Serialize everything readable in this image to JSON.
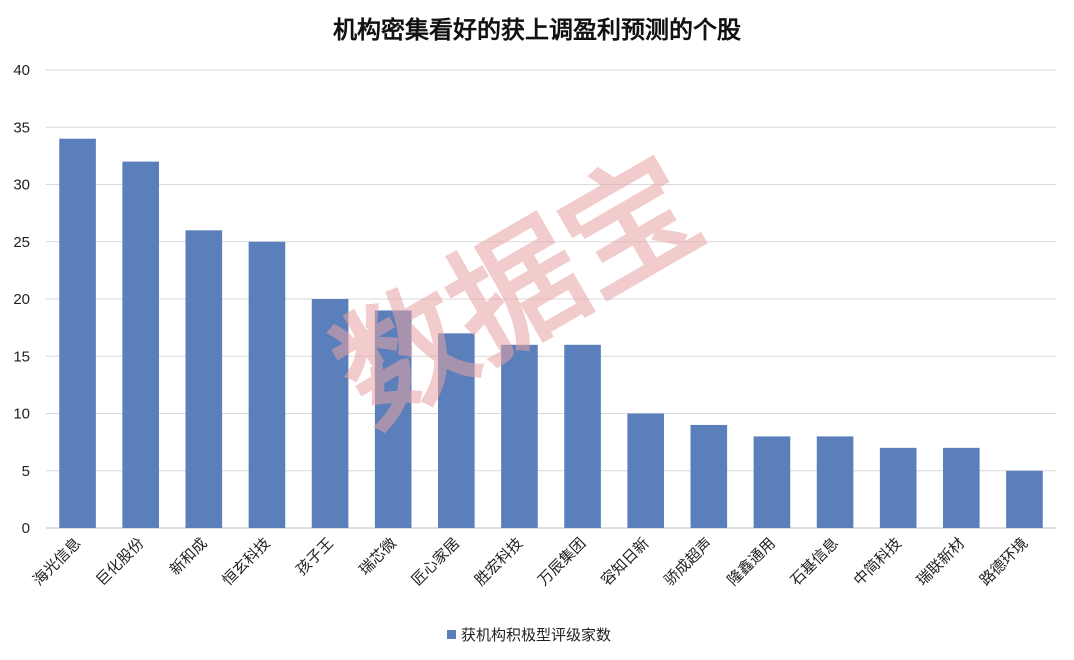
{
  "chart_data": {
    "type": "bar",
    "title": "机构密集看好的获上调盈利预测的个股",
    "categories": [
      "海光信息",
      "巨化股份",
      "新和成",
      "恒玄科技",
      "孩子王",
      "瑞芯微",
      "匠心家居",
      "胜宏科技",
      "万辰集团",
      "容知日新",
      "骄成超声",
      "隆鑫通用",
      "石基信息",
      "中简科技",
      "瑞联新材",
      "路德环境"
    ],
    "series": [
      {
        "name": "获机构积极型评级家数",
        "values": [
          34,
          32,
          26,
          25,
          20,
          19,
          17,
          16,
          16,
          10,
          9,
          8,
          8,
          7,
          7,
          5
        ]
      }
    ],
    "ylim": [
      0,
      40
    ],
    "yticks": [
      0,
      5,
      10,
      15,
      20,
      25,
      30,
      35,
      40
    ],
    "grid": true,
    "legend": "bottom",
    "bar_color": "#5b7fbb",
    "watermark": "数据宝"
  }
}
